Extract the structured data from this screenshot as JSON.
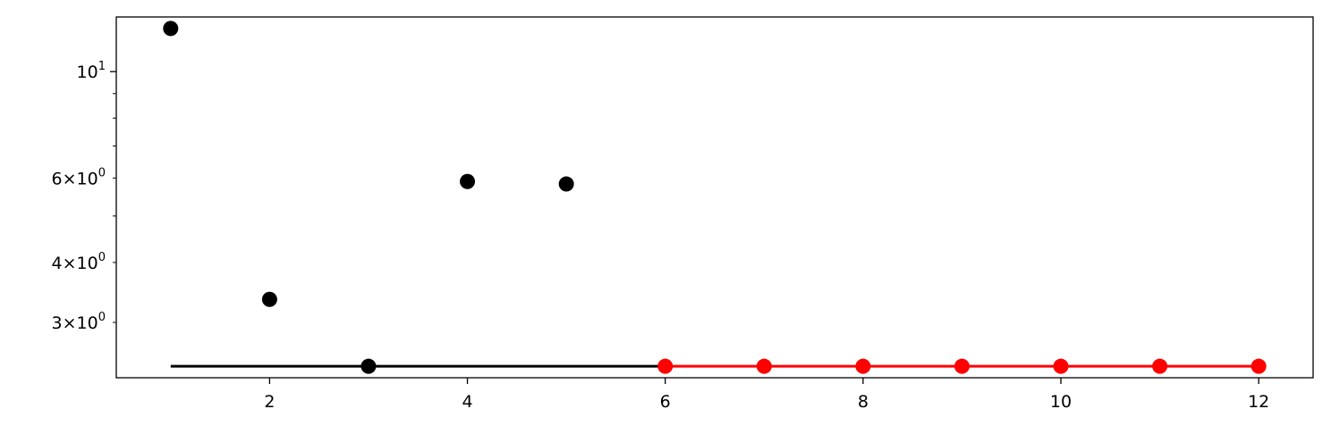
{
  "chart_data": {
    "type": "scatter",
    "title": "",
    "xlabel": "",
    "ylabel": "",
    "x_scale": "linear",
    "y_scale": "log",
    "xlim": [
      0.45,
      12.55
    ],
    "ylim": [
      2.3,
      13.0
    ],
    "grid": false,
    "x_ticks": [
      2,
      4,
      6,
      8,
      10,
      12
    ],
    "y_major_ticks": [
      10
    ],
    "y_labeled_minor_ticks": [
      3,
      4,
      6
    ],
    "y_minor_ticks": [
      3,
      4,
      5,
      6,
      7,
      8,
      9
    ],
    "series": [
      {
        "color": "#000000",
        "marker": "circle",
        "x": [
          1,
          2,
          3,
          4,
          5
        ],
        "y": [
          12.3,
          3.35,
          2.43,
          5.9,
          5.83
        ]
      },
      {
        "color": "#000000",
        "marker": "none",
        "line": true,
        "x": [
          1,
          6
        ],
        "y": [
          2.43,
          2.43
        ]
      },
      {
        "color": "#ff0000",
        "marker": "circle",
        "line": true,
        "x": [
          6,
          7,
          8,
          9,
          10,
          11,
          12
        ],
        "y": [
          2.43,
          2.43,
          2.43,
          2.43,
          2.43,
          2.43,
          2.43
        ]
      }
    ]
  }
}
